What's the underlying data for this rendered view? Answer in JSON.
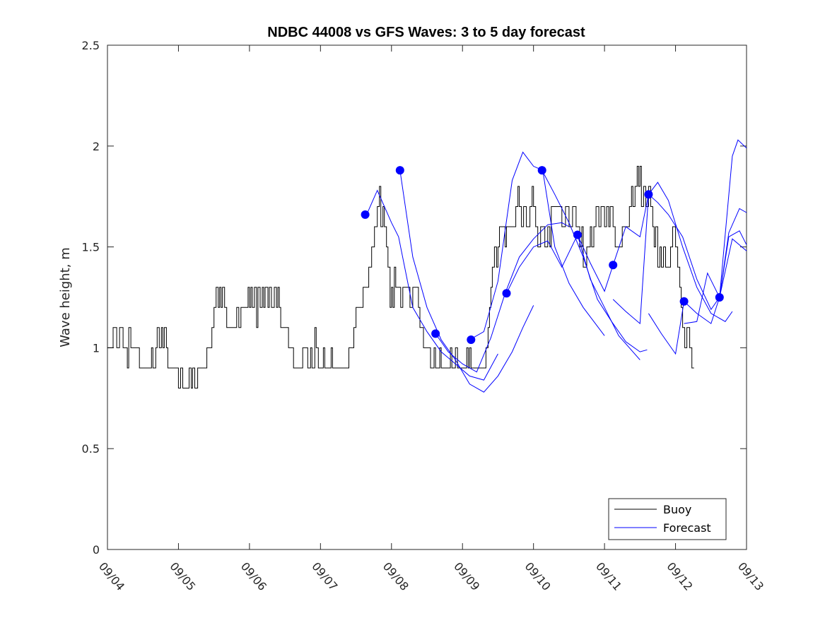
{
  "chart_data": {
    "type": "line",
    "title": "NDBC 44008 vs GFS Waves: 3 to 5 day forecast",
    "xlabel": "",
    "ylabel": "Wave height, m",
    "xlim": [
      0,
      9
    ],
    "ylim": [
      0,
      2.5
    ],
    "x_tick_values": [
      0,
      1,
      2,
      3,
      4,
      5,
      6,
      7,
      8,
      9
    ],
    "x_tick_labels": [
      "09/04",
      "09/05",
      "09/06",
      "09/07",
      "09/08",
      "09/09",
      "09/10",
      "09/11",
      "09/12",
      "09/13"
    ],
    "y_tick_values": [
      0,
      0.5,
      1,
      1.5,
      2,
      2.5
    ],
    "y_tick_labels": [
      "0",
      "0.5",
      "1",
      "1.5",
      "2",
      "2.5"
    ],
    "grid": false,
    "legend": {
      "placement": "bottom-right",
      "entries": [
        "Buoy",
        "Forecast"
      ]
    },
    "colors": {
      "buoy": "#000000",
      "forecast": "#0000ff",
      "markers": "#0000ff",
      "axis": "#262626"
    },
    "buoy": {
      "name": "Buoy",
      "steps": [
        [
          0,
          1.0
        ],
        [
          0.08,
          1.1
        ],
        [
          0.13,
          1.0
        ],
        [
          0.17,
          1.1
        ],
        [
          0.22,
          1.0
        ],
        [
          0.28,
          0.9
        ],
        [
          0.3,
          1.1
        ],
        [
          0.33,
          1.0
        ],
        [
          0.45,
          0.9
        ],
        [
          0.6,
          0.9
        ],
        [
          0.62,
          1.0
        ],
        [
          0.64,
          0.9
        ],
        [
          0.68,
          1.0
        ],
        [
          0.7,
          1.1
        ],
        [
          0.73,
          1.0
        ],
        [
          0.76,
          1.1
        ],
        [
          0.78,
          1.0
        ],
        [
          0.8,
          1.1
        ],
        [
          0.83,
          1.0
        ],
        [
          0.85,
          0.9
        ],
        [
          0.98,
          0.9
        ],
        [
          1.0,
          0.8
        ],
        [
          1.03,
          0.9
        ],
        [
          1.06,
          0.8
        ],
        [
          1.15,
          0.9
        ],
        [
          1.18,
          0.8
        ],
        [
          1.2,
          0.9
        ],
        [
          1.23,
          0.8
        ],
        [
          1.27,
          0.9
        ],
        [
          1.4,
          1.0
        ],
        [
          1.47,
          1.1
        ],
        [
          1.5,
          1.2
        ],
        [
          1.53,
          1.3
        ],
        [
          1.56,
          1.2
        ],
        [
          1.58,
          1.3
        ],
        [
          1.6,
          1.2
        ],
        [
          1.62,
          1.3
        ],
        [
          1.65,
          1.2
        ],
        [
          1.68,
          1.1
        ],
        [
          1.82,
          1.2
        ],
        [
          1.85,
          1.1
        ],
        [
          1.88,
          1.2
        ],
        [
          1.95,
          1.2
        ],
        [
          1.98,
          1.3
        ],
        [
          2.0,
          1.2
        ],
        [
          2.02,
          1.3
        ],
        [
          2.04,
          1.2
        ],
        [
          2.07,
          1.3
        ],
        [
          2.1,
          1.1
        ],
        [
          2.12,
          1.3
        ],
        [
          2.15,
          1.2
        ],
        [
          2.18,
          1.3
        ],
        [
          2.2,
          1.2
        ],
        [
          2.22,
          1.3
        ],
        [
          2.26,
          1.2
        ],
        [
          2.28,
          1.3
        ],
        [
          2.31,
          1.2
        ],
        [
          2.35,
          1.3
        ],
        [
          2.38,
          1.2
        ],
        [
          2.4,
          1.3
        ],
        [
          2.42,
          1.2
        ],
        [
          2.44,
          1.1
        ],
        [
          2.5,
          1.1
        ],
        [
          2.55,
          1.0
        ],
        [
          2.62,
          0.9
        ],
        [
          2.72,
          0.9
        ],
        [
          2.75,
          1.0
        ],
        [
          2.8,
          1.0
        ],
        [
          2.82,
          0.9
        ],
        [
          2.86,
          1.0
        ],
        [
          2.88,
          0.9
        ],
        [
          2.92,
          1.1
        ],
        [
          2.94,
          1.0
        ],
        [
          2.97,
          0.9
        ],
        [
          3.0,
          0.9
        ],
        [
          3.04,
          1.0
        ],
        [
          3.06,
          0.9
        ],
        [
          3.12,
          0.9
        ],
        [
          3.15,
          1.0
        ],
        [
          3.17,
          0.9
        ],
        [
          3.27,
          0.9
        ],
        [
          3.4,
          1.0
        ],
        [
          3.47,
          1.1
        ],
        [
          3.5,
          1.2
        ],
        [
          3.6,
          1.3
        ],
        [
          3.68,
          1.4
        ],
        [
          3.72,
          1.5
        ],
        [
          3.76,
          1.6
        ],
        [
          3.8,
          1.7
        ],
        [
          3.83,
          1.8
        ],
        [
          3.85,
          1.6
        ],
        [
          3.88,
          1.7
        ],
        [
          3.9,
          1.6
        ],
        [
          3.93,
          1.5
        ],
        [
          3.95,
          1.4
        ],
        [
          3.98,
          1.2
        ],
        [
          4.0,
          1.3
        ],
        [
          4.02,
          1.2
        ],
        [
          4.04,
          1.4
        ],
        [
          4.06,
          1.3
        ],
        [
          4.1,
          1.3
        ],
        [
          4.13,
          1.2
        ],
        [
          4.16,
          1.3
        ],
        [
          4.2,
          1.3
        ],
        [
          4.23,
          1.3
        ],
        [
          4.26,
          1.2
        ],
        [
          4.3,
          1.3
        ],
        [
          4.35,
          1.3
        ],
        [
          4.38,
          1.2
        ],
        [
          4.4,
          1.1
        ],
        [
          4.45,
          1.0
        ],
        [
          4.5,
          1.0
        ],
        [
          4.55,
          0.9
        ],
        [
          4.6,
          1.0
        ],
        [
          4.62,
          0.9
        ],
        [
          4.68,
          1.0
        ],
        [
          4.7,
          0.9
        ],
        [
          4.8,
          0.9
        ],
        [
          4.83,
          1.0
        ],
        [
          4.85,
          0.9
        ],
        [
          4.9,
          1.0
        ],
        [
          4.93,
          0.9
        ],
        [
          5.0,
          0.9
        ],
        [
          5.06,
          1.0
        ],
        [
          5.08,
          0.9
        ],
        [
          5.1,
          1.0
        ],
        [
          5.12,
          0.9
        ],
        [
          5.2,
          0.9
        ],
        [
          5.27,
          0.9
        ],
        [
          5.33,
          1.0
        ],
        [
          5.36,
          1.1
        ],
        [
          5.38,
          1.2
        ],
        [
          5.4,
          1.3
        ],
        [
          5.42,
          1.4
        ],
        [
          5.45,
          1.5
        ],
        [
          5.48,
          1.4
        ],
        [
          5.5,
          1.5
        ],
        [
          5.52,
          1.6
        ],
        [
          5.58,
          1.6
        ],
        [
          5.6,
          1.5
        ],
        [
          5.62,
          1.6
        ],
        [
          5.7,
          1.6
        ],
        [
          5.75,
          1.7
        ],
        [
          5.78,
          1.8
        ],
        [
          5.8,
          1.7
        ],
        [
          5.83,
          1.6
        ],
        [
          5.86,
          1.7
        ],
        [
          5.9,
          1.6
        ],
        [
          5.95,
          1.7
        ],
        [
          5.98,
          1.8
        ],
        [
          6.0,
          1.7
        ],
        [
          6.03,
          1.6
        ],
        [
          6.06,
          1.5
        ],
        [
          6.1,
          1.6
        ],
        [
          6.13,
          1.6
        ],
        [
          6.16,
          1.5
        ],
        [
          6.2,
          1.6
        ],
        [
          6.23,
          1.5
        ],
        [
          6.25,
          1.7
        ],
        [
          6.3,
          1.7
        ],
        [
          6.35,
          1.7
        ],
        [
          6.4,
          1.6
        ],
        [
          6.45,
          1.7
        ],
        [
          6.5,
          1.6
        ],
        [
          6.55,
          1.7
        ],
        [
          6.6,
          1.6
        ],
        [
          6.65,
          1.5
        ],
        [
          6.68,
          1.6
        ],
        [
          6.7,
          1.4
        ],
        [
          6.75,
          1.5
        ],
        [
          6.8,
          1.6
        ],
        [
          6.82,
          1.5
        ],
        [
          6.85,
          1.6
        ],
        [
          6.88,
          1.7
        ],
        [
          6.92,
          1.6
        ],
        [
          6.95,
          1.7
        ],
        [
          7.0,
          1.6
        ],
        [
          7.03,
          1.7
        ],
        [
          7.06,
          1.6
        ],
        [
          7.08,
          1.7
        ],
        [
          7.12,
          1.6
        ],
        [
          7.15,
          1.5
        ],
        [
          7.2,
          1.5
        ],
        [
          7.25,
          1.6
        ],
        [
          7.3,
          1.6
        ],
        [
          7.35,
          1.7
        ],
        [
          7.38,
          1.8
        ],
        [
          7.4,
          1.7
        ],
        [
          7.43,
          1.8
        ],
        [
          7.46,
          1.9
        ],
        [
          7.48,
          1.8
        ],
        [
          7.5,
          1.9
        ],
        [
          7.52,
          1.7
        ],
        [
          7.55,
          1.8
        ],
        [
          7.58,
          1.7
        ],
        [
          7.62,
          1.8
        ],
        [
          7.65,
          1.7
        ],
        [
          7.68,
          1.6
        ],
        [
          7.7,
          1.5
        ],
        [
          7.72,
          1.6
        ],
        [
          7.75,
          1.4
        ],
        [
          7.78,
          1.5
        ],
        [
          7.8,
          1.4
        ],
        [
          7.83,
          1.5
        ],
        [
          7.86,
          1.4
        ],
        [
          7.9,
          1.4
        ],
        [
          7.93,
          1.5
        ],
        [
          7.96,
          1.6
        ],
        [
          8.0,
          1.5
        ],
        [
          8.03,
          1.4
        ],
        [
          8.06,
          1.3
        ],
        [
          8.08,
          1.2
        ],
        [
          8.1,
          1.1
        ],
        [
          8.13,
          1.0
        ],
        [
          8.16,
          1.1
        ],
        [
          8.2,
          1.0
        ],
        [
          8.23,
          0.9
        ],
        [
          8.26,
          0.9
        ]
      ]
    },
    "forecast_series": [
      {
        "name": "Forecast",
        "points": [
          [
            3.65,
            1.66
          ],
          [
            3.8,
            1.78
          ],
          [
            4.0,
            1.62
          ],
          [
            4.1,
            1.55
          ],
          [
            4.3,
            1.2
          ],
          [
            4.5,
            1.08
          ],
          [
            4.7,
            0.98
          ],
          [
            4.9,
            0.92
          ],
          [
            5.1,
            0.86
          ],
          [
            5.3,
            0.84
          ],
          [
            5.5,
            0.97
          ]
        ]
      },
      {
        "name": "Forecast",
        "points": [
          [
            4.12,
            1.88
          ],
          [
            4.3,
            1.45
          ],
          [
            4.5,
            1.2
          ],
          [
            4.7,
            1.04
          ],
          [
            4.9,
            0.94
          ],
          [
            5.1,
            0.82
          ],
          [
            5.3,
            0.78
          ],
          [
            5.5,
            0.86
          ],
          [
            5.7,
            0.98
          ],
          [
            5.85,
            1.1
          ],
          [
            6.0,
            1.21
          ]
        ]
      },
      {
        "name": "Forecast",
        "points": [
          [
            4.62,
            1.07
          ],
          [
            4.8,
            0.98
          ],
          [
            5.0,
            0.92
          ],
          [
            5.2,
            0.88
          ],
          [
            5.4,
            1.05
          ],
          [
            5.6,
            1.27
          ],
          [
            5.8,
            1.45
          ],
          [
            6.0,
            1.54
          ],
          [
            6.2,
            1.61
          ],
          [
            6.4,
            1.62
          ],
          [
            6.5,
            1.6
          ]
        ]
      },
      {
        "name": "Forecast",
        "points": [
          [
            5.1,
            1.04
          ],
          [
            5.3,
            1.08
          ],
          [
            5.5,
            1.33
          ],
          [
            5.7,
            1.83
          ],
          [
            5.85,
            1.97
          ],
          [
            6.0,
            1.9
          ],
          [
            6.13,
            1.88
          ],
          [
            6.3,
            1.5
          ],
          [
            6.5,
            1.32
          ],
          [
            6.7,
            1.2
          ],
          [
            7.0,
            1.06
          ]
        ]
      },
      {
        "name": "Forecast",
        "points": [
          [
            5.62,
            1.27
          ],
          [
            5.8,
            1.4
          ],
          [
            6.0,
            1.5
          ],
          [
            6.2,
            1.53
          ],
          [
            6.4,
            1.4
          ],
          [
            6.62,
            1.56
          ],
          [
            6.8,
            1.34
          ],
          [
            7.0,
            1.2
          ],
          [
            7.2,
            1.06
          ],
          [
            7.5,
            0.94
          ]
        ]
      },
      {
        "name": "Forecast",
        "points": [
          [
            6.12,
            1.88
          ],
          [
            6.3,
            1.76
          ],
          [
            6.5,
            1.62
          ],
          [
            6.7,
            1.45
          ],
          [
            6.9,
            1.24
          ],
          [
            7.1,
            1.13
          ],
          [
            7.3,
            1.03
          ],
          [
            7.5,
            0.98
          ],
          [
            7.6,
            0.99
          ]
        ]
      },
      {
        "name": "Forecast",
        "points": [
          [
            6.62,
            1.56
          ],
          [
            6.8,
            1.42
          ],
          [
            7.0,
            1.28
          ],
          [
            7.12,
            1.41
          ],
          [
            7.3,
            1.6
          ],
          [
            7.5,
            1.55
          ],
          [
            7.62,
            1.76
          ],
          [
            7.75,
            1.82
          ],
          [
            7.9,
            1.73
          ],
          [
            8.1,
            1.5
          ],
          [
            8.3,
            1.3
          ],
          [
            8.5,
            1.17
          ],
          [
            8.7,
            1.13
          ],
          [
            8.8,
            1.18
          ]
        ]
      },
      {
        "name": "Forecast",
        "points": [
          [
            7.12,
            1.24
          ],
          [
            7.3,
            1.18
          ],
          [
            7.5,
            1.12
          ],
          [
            7.62,
            1.76
          ],
          [
            7.75,
            1.72
          ],
          [
            7.9,
            1.66
          ],
          [
            8.1,
            1.55
          ],
          [
            8.3,
            1.34
          ],
          [
            8.5,
            1.19
          ],
          [
            8.62,
            1.25
          ],
          [
            8.8,
            1.54
          ],
          [
            9.0,
            1.48
          ]
        ]
      },
      {
        "name": "Forecast",
        "points": [
          [
            7.62,
            1.17
          ],
          [
            7.8,
            1.07
          ],
          [
            8.0,
            0.97
          ],
          [
            8.12,
            1.23
          ],
          [
            8.3,
            1.17
          ],
          [
            8.5,
            1.12
          ],
          [
            8.62,
            1.25
          ],
          [
            8.75,
            1.57
          ],
          [
            8.9,
            1.69
          ],
          [
            9.0,
            1.67
          ]
        ]
      },
      {
        "name": "Forecast",
        "points": [
          [
            8.12,
            1.12
          ],
          [
            8.3,
            1.13
          ],
          [
            8.45,
            1.37
          ],
          [
            8.62,
            1.25
          ],
          [
            8.75,
            1.55
          ],
          [
            8.9,
            1.58
          ],
          [
            9.0,
            1.51
          ]
        ]
      },
      {
        "name": "Forecast",
        "points": [
          [
            8.62,
            1.25
          ],
          [
            8.8,
            1.95
          ],
          [
            8.88,
            2.03
          ],
          [
            9.0,
            1.99
          ]
        ]
      }
    ],
    "marker_points": [
      [
        3.63,
        1.66
      ],
      [
        4.12,
        1.88
      ],
      [
        4.62,
        1.07
      ],
      [
        5.12,
        1.04
      ],
      [
        5.62,
        1.27
      ],
      [
        6.12,
        1.88
      ],
      [
        6.62,
        1.56
      ],
      [
        7.12,
        1.41
      ],
      [
        7.62,
        1.76
      ],
      [
        8.12,
        1.23
      ],
      [
        8.62,
        1.25
      ]
    ]
  }
}
